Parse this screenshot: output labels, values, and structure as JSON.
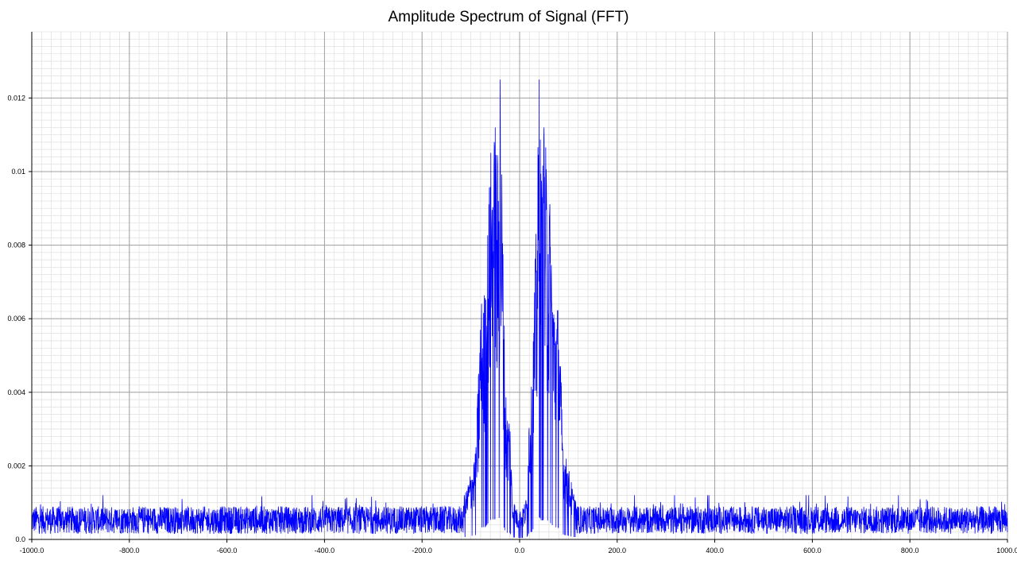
{
  "chart_data": {
    "type": "line",
    "title": "Amplitude Spectrum of Signal (FFT)",
    "xlabel": "",
    "ylabel": "",
    "xlim": [
      -1000.0,
      1000.0
    ],
    "ylim": [
      0.0,
      0.0138
    ],
    "x_ticks": [
      -1000.0,
      -800.0,
      -600.0,
      -400.0,
      -200.0,
      0.0,
      200.0,
      400.0,
      600.0,
      800.0,
      1000.0
    ],
    "x_tick_labels": [
      "-1000.0",
      "-800.0",
      "-600.0",
      "-400.0",
      "-200.0",
      "0.0",
      "200.0",
      "400.0",
      "600.0",
      "800.0",
      "1000.0"
    ],
    "y_ticks": [
      0.0,
      0.002,
      0.004,
      0.006,
      0.008,
      0.01,
      0.012
    ],
    "y_tick_labels": [
      "0.0",
      "0.002",
      "0.004",
      "0.006",
      "0.008",
      "0.01",
      "0.012"
    ],
    "grid": "major and minor",
    "legend": "none",
    "colors": {
      "series": "#0000ff",
      "major_grid": "#a0a0a0",
      "minor_grid": "#e2e2e2",
      "axis": "#000000"
    },
    "series": [
      {
        "noise_floor_mean": 0.0005,
        "noise_floor_max": 0.0015,
        "envelope": {
          "x": [
            -1000,
            -120,
            -110,
            -100,
            -90,
            -80,
            -70,
            -60,
            -50,
            -45,
            -40,
            -35,
            -30,
            -25,
            -20,
            -15,
            -10,
            -5,
            0,
            5,
            10,
            15,
            20,
            25,
            30,
            35,
            40,
            45,
            50,
            55,
            60,
            70,
            80,
            90,
            100,
            110,
            120,
            1000
          ],
          "y": [
            0.0012,
            0.0012,
            0.0013,
            0.0019,
            0.0024,
            0.0065,
            0.0069,
            0.0106,
            0.0112,
            0.0105,
            0.0125,
            0.0094,
            0.0045,
            0.0035,
            0.0035,
            0.0012,
            0.001,
            0.0008,
            0.0008,
            0.0008,
            0.001,
            0.0012,
            0.004,
            0.0042,
            0.0068,
            0.009,
            0.0125,
            0.01,
            0.0112,
            0.0105,
            0.01,
            0.0068,
            0.0064,
            0.0025,
            0.002,
            0.0013,
            0.0012,
            0.0012
          ]
        },
        "peaks": [
          {
            "x": -40.0,
            "y": 0.0125
          },
          {
            "x": 40.0,
            "y": 0.0125
          },
          {
            "x": -50.0,
            "y": 0.0112
          },
          {
            "x": 50.0,
            "y": 0.0112
          }
        ]
      }
    ]
  }
}
